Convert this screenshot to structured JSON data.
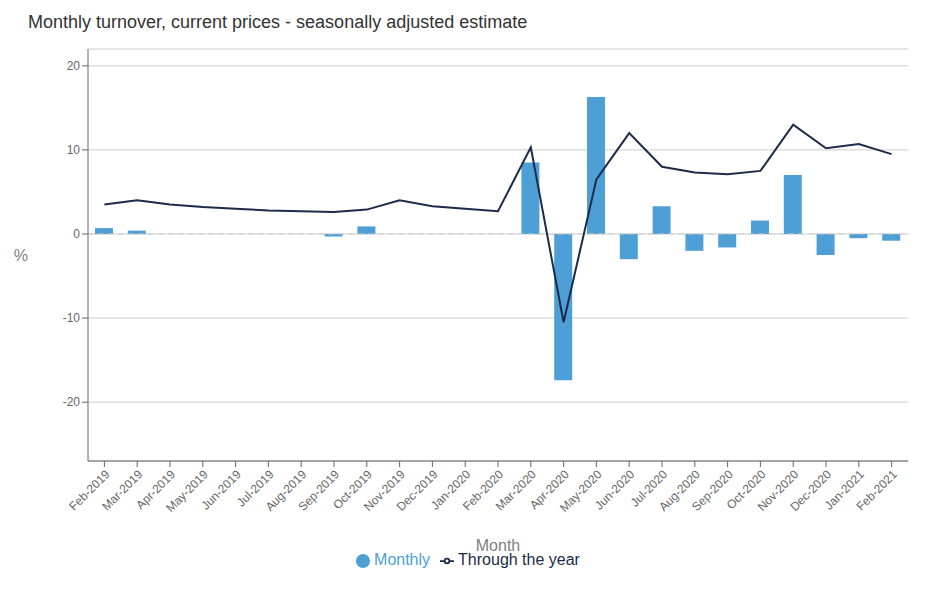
{
  "chart_data": {
    "type": "bar",
    "title": "Monthly turnover, current prices - seasonally adjusted estimate",
    "xlabel": "Month",
    "ylabel": "%",
    "categories": [
      "Feb-2019",
      "Mar-2019",
      "Apr-2019",
      "May-2019",
      "Jun-2019",
      "Jul-2019",
      "Aug-2019",
      "Sep-2019",
      "Oct-2019",
      "Nov-2019",
      "Dec-2019",
      "Jan-2020",
      "Feb-2020",
      "Mar-2020",
      "Apr-2020",
      "May-2020",
      "Jun-2020",
      "Jul-2020",
      "Aug-2020",
      "Sep-2020",
      "Oct-2020",
      "Nov-2020",
      "Dec-2020",
      "Jan-2021",
      "Feb-2021"
    ],
    "series": [
      {
        "name": "Monthly",
        "type": "bar",
        "color": "#4D9FD6",
        "values": [
          0.7,
          0.4,
          0.0,
          0.0,
          0.0,
          0.0,
          0.0,
          -0.3,
          0.9,
          0.0,
          0.0,
          0.0,
          0.0,
          8.5,
          -17.4,
          16.3,
          -3.0,
          3.3,
          -2.0,
          -1.6,
          1.6,
          7.0,
          -2.5,
          -0.5,
          -0.8
        ]
      },
      {
        "name": "Through the year",
        "type": "line",
        "color": "#1C2B4B",
        "values": [
          3.5,
          4.0,
          3.5,
          3.2,
          3.0,
          2.8,
          2.7,
          2.6,
          2.9,
          4.0,
          3.3,
          3.0,
          2.7,
          10.3,
          -10.5,
          6.5,
          12.0,
          8.0,
          7.3,
          7.1,
          7.5,
          13.0,
          10.2,
          10.7,
          9.5
        ]
      }
    ],
    "ylim": [
      -27,
      22
    ],
    "yticks": [
      -20,
      -10,
      0,
      10,
      20
    ],
    "grid": true,
    "legend": "bottom"
  }
}
